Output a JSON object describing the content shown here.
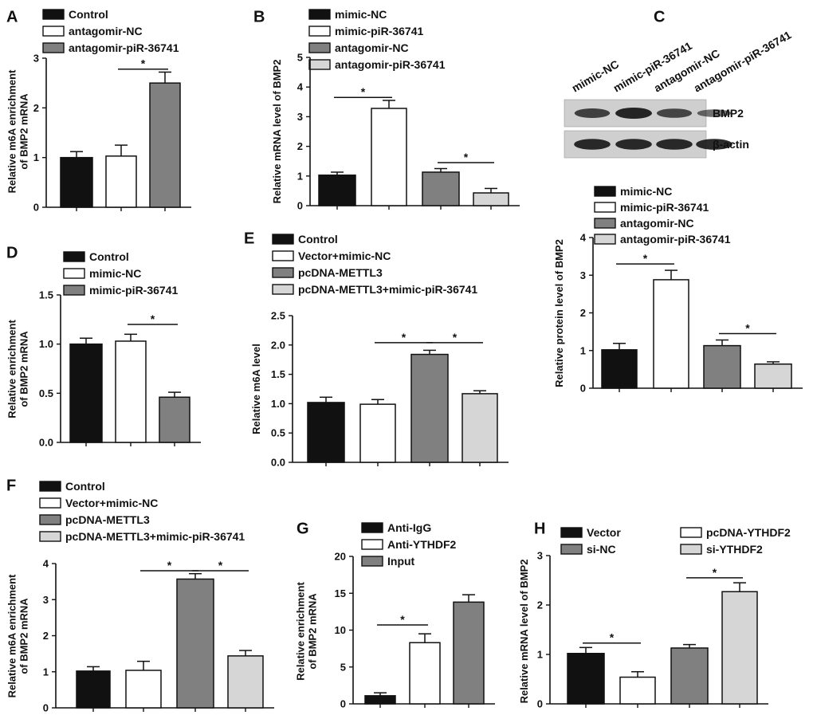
{
  "colors": {
    "black": "#111111",
    "white": "#ffffff",
    "gray": "#808080",
    "lightgray": "#d6d6d6",
    "blot_bg": "#cfcfcf",
    "band": "#1a1a1a"
  },
  "chart_data": [
    {
      "panel": "A",
      "type": "bar",
      "ylabel": [
        "Relative m6A enrichment",
        "of BMP2 mRNA"
      ],
      "ylim": [
        0,
        3
      ],
      "yticks": [
        0,
        1,
        2,
        3
      ],
      "tick_labels": [
        "0",
        "1",
        "2",
        "3"
      ],
      "legend": [
        "Control",
        "antagomir-NC",
        "antagomir-piR-36741"
      ],
      "colors": [
        "black",
        "white",
        "gray"
      ],
      "values": [
        1.0,
        1.03,
        2.5
      ],
      "errors": [
        0.12,
        0.22,
        0.22
      ],
      "sig": [
        {
          "from": 1,
          "to": 2,
          "label": "*",
          "y": 2.78
        }
      ]
    },
    {
      "panel": "B",
      "type": "bar",
      "ylabel": [
        "Relative mRNA level of BMP2"
      ],
      "ylim": [
        0,
        5
      ],
      "yticks": [
        0,
        1,
        2,
        3,
        4,
        5
      ],
      "tick_labels": [
        "0",
        "1",
        "2",
        "3",
        "4",
        "5"
      ],
      "legend": [
        "mimic-NC",
        "mimic-piR-36741",
        "antagomir-NC",
        "antagomir-piR-36741"
      ],
      "colors": [
        "black",
        "white",
        "gray",
        "lightgray"
      ],
      "values": [
        1.03,
        3.28,
        1.13,
        0.43
      ],
      "errors": [
        0.1,
        0.27,
        0.12,
        0.15
      ],
      "sig": [
        {
          "from": 0,
          "to": 1,
          "label": "*",
          "y": 3.65
        },
        {
          "from": 2,
          "to": 3,
          "label": "*",
          "y": 1.45
        }
      ]
    },
    {
      "panel": "C",
      "type": "bar",
      "ylabel": [
        "Relative protein level of BMP2"
      ],
      "ylim": [
        0,
        4
      ],
      "yticks": [
        0,
        1,
        2,
        3,
        4
      ],
      "tick_labels": [
        "0",
        "1",
        "2",
        "3",
        "4"
      ],
      "legend": [
        "mimic-NC",
        "mimic-piR-36741",
        "antagomir-NC",
        "antagomir-piR-36741"
      ],
      "colors": [
        "black",
        "white",
        "gray",
        "lightgray"
      ],
      "values": [
        1.02,
        2.88,
        1.13,
        0.64
      ],
      "errors": [
        0.17,
        0.25,
        0.15,
        0.06
      ],
      "sig": [
        {
          "from": 0,
          "to": 1,
          "label": "*",
          "y": 3.3
        },
        {
          "from": 2,
          "to": 3,
          "label": "*",
          "y": 1.45
        }
      ]
    },
    {
      "panel": "D",
      "type": "bar",
      "ylabel": [
        "Relative enrichment",
        "of BMP2 mRNA"
      ],
      "ylim": [
        0,
        1.5
      ],
      "yticks": [
        0,
        0.5,
        1,
        1.5
      ],
      "tick_labels": [
        "0.0",
        "0.5",
        "1.0",
        "1.5"
      ],
      "legend": [
        "Control",
        "mimic-NC",
        "mimic-piR-36741"
      ],
      "colors": [
        "black",
        "white",
        "gray"
      ],
      "values": [
        1.0,
        1.03,
        0.46
      ],
      "errors": [
        0.06,
        0.07,
        0.05
      ],
      "sig": [
        {
          "from": 1,
          "to": 2,
          "label": "*",
          "y": 1.2
        }
      ]
    },
    {
      "panel": "E",
      "type": "bar",
      "ylabel": [
        "Relative m6A level"
      ],
      "ylim": [
        0,
        2.5
      ],
      "yticks": [
        0,
        0.5,
        1,
        1.5,
        2,
        2.5
      ],
      "tick_labels": [
        "0.0",
        "0.5",
        "1.0",
        "1.5",
        "2.0",
        "2.5"
      ],
      "legend": [
        "Control",
        "Vector+mimic-NC",
        "pcDNA-METTL3",
        "pcDNA-METTL3+mimic-piR-36741"
      ],
      "colors": [
        "black",
        "white",
        "gray",
        "lightgray"
      ],
      "values": [
        1.02,
        0.99,
        1.84,
        1.17
      ],
      "errors": [
        0.09,
        0.08,
        0.07,
        0.05
      ],
      "sig": [
        {
          "from": 1,
          "to": 2,
          "label": "*",
          "y": 2.04
        },
        {
          "from": 2,
          "to": 3,
          "label": "*",
          "y": 2.04
        }
      ]
    },
    {
      "panel": "F",
      "type": "bar",
      "ylabel": [
        "Relative m6A enrichment",
        "of BMP2 mRNA"
      ],
      "ylim": [
        0,
        4
      ],
      "yticks": [
        0,
        1,
        2,
        3,
        4
      ],
      "tick_labels": [
        "0",
        "1",
        "2",
        "3",
        "4"
      ],
      "legend": [
        "Control",
        "Vector+mimic-NC",
        "pcDNA-METTL3",
        "pcDNA-METTL3+mimic-piR-36741"
      ],
      "colors": [
        "black",
        "white",
        "gray",
        "lightgray"
      ],
      "values": [
        1.02,
        1.04,
        3.57,
        1.44
      ],
      "errors": [
        0.12,
        0.25,
        0.15,
        0.15
      ],
      "sig": [
        {
          "from": 1,
          "to": 2,
          "label": "*",
          "y": 3.8
        },
        {
          "from": 2,
          "to": 3,
          "label": "*",
          "y": 3.8
        }
      ]
    },
    {
      "panel": "G",
      "type": "bar",
      "ylabel": [
        "Relative enrichment",
        "of BMP2 mRNA"
      ],
      "ylim": [
        0,
        20
      ],
      "yticks": [
        0,
        5,
        10,
        15,
        20
      ],
      "tick_labels": [
        "0",
        "5",
        "10",
        "15",
        "20"
      ],
      "legend": [
        "Anti-IgG",
        "Anti-YTHDF2",
        "Input"
      ],
      "colors": [
        "black",
        "white",
        "gray"
      ],
      "values": [
        1.1,
        8.3,
        13.8
      ],
      "errors": [
        0.4,
        1.2,
        1.0
      ],
      "sig": [
        {
          "from": 0,
          "to": 1,
          "label": "*",
          "y": 10.7
        }
      ]
    },
    {
      "panel": "H",
      "type": "bar",
      "ylabel": [
        "Relative mRNA level of BMP2"
      ],
      "ylim": [
        0,
        3
      ],
      "yticks": [
        0,
        1,
        2,
        3
      ],
      "tick_labels": [
        "0",
        "1",
        "2",
        "3"
      ],
      "legend": [
        "Vector",
        "pcDNA-YTHDF2",
        "si-NC",
        "si-YTHDF2"
      ],
      "colors": [
        "black",
        "white",
        "gray",
        "lightgray"
      ],
      "values": [
        1.02,
        0.54,
        1.13,
        2.27
      ],
      "errors": [
        0.12,
        0.11,
        0.07,
        0.18
      ],
      "sig": [
        {
          "from": 0,
          "to": 1,
          "label": "*",
          "y": 1.23
        },
        {
          "from": 2,
          "to": 3,
          "label": "*",
          "y": 2.55
        }
      ]
    }
  ],
  "blot": {
    "panel": "C",
    "lanes": [
      "mimic-NC",
      "mimic-piR-36741",
      "antagomir-NC",
      "antagomir-piR-36741"
    ],
    "rows": [
      {
        "label": "BMP2",
        "intensity": [
          0.75,
          1.0,
          0.7,
          0.45
        ]
      },
      {
        "label": "β-actin",
        "intensity": [
          0.95,
          0.95,
          0.95,
          0.95
        ]
      }
    ]
  }
}
